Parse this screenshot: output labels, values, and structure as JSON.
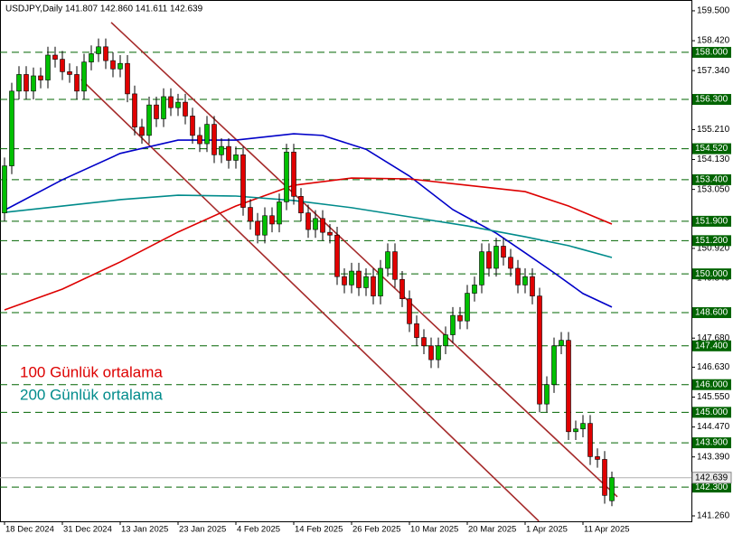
{
  "chart_data": {
    "type": "candlestick",
    "title": "USDJPY,Daily  141.807 142.860 141.611 142.639",
    "categories": [
      "18 Dec 2024",
      null,
      null,
      null,
      null,
      null,
      null,
      null,
      "31 Dec 2024",
      null,
      null,
      null,
      null,
      null,
      null,
      null,
      "13 Jan 2025",
      null,
      null,
      null,
      null,
      null,
      null,
      null,
      "23 Jan 2025",
      null,
      null,
      null,
      null,
      null,
      null,
      null,
      "4 Feb 2025",
      null,
      null,
      null,
      null,
      null,
      null,
      null,
      "14 Feb 2025",
      null,
      null,
      null,
      null,
      null,
      null,
      null,
      "26 Feb 2025",
      null,
      null,
      null,
      null,
      null,
      null,
      null,
      "10 Mar 2025",
      null,
      null,
      null,
      null,
      null,
      null,
      null,
      "20 Mar 2025",
      null,
      null,
      null,
      null,
      null,
      null,
      null,
      "1 Apr 2025",
      null,
      null,
      null,
      null,
      null,
      null,
      null,
      "11 Apr 2025",
      null,
      null,
      null,
      null
    ],
    "open": [
      152.2,
      153.9,
      156.6,
      157.2,
      156.6,
      157.15,
      157.0,
      157.9,
      157.75,
      157.3,
      157.2,
      156.6,
      157.65,
      157.95,
      158.2,
      157.7,
      157.4,
      157.6,
      156.5,
      155.3,
      155.0,
      156.1,
      155.6,
      156.4,
      156.0,
      156.2,
      155.7,
      155.0,
      154.7,
      155.4,
      154.3,
      154.6,
      154.1,
      154.3,
      152.4,
      151.9,
      151.4,
      152.1,
      151.8,
      152.6,
      154.4,
      152.8,
      152.2,
      151.6,
      152.0,
      151.5,
      151.4,
      149.9,
      149.6,
      150.1,
      149.5,
      149.9,
      149.2,
      150.2,
      150.8,
      149.8,
      149.1,
      148.2,
      147.7,
      147.4,
      146.9,
      147.4,
      147.8,
      148.5,
      148.3,
      149.3,
      149.6,
      150.8,
      150.2,
      151.0,
      150.6,
      150.2,
      149.6,
      149.9,
      149.2,
      145.3,
      146.0,
      147.4,
      147.6,
      144.3,
      144.4,
      144.6,
      143.4,
      143.3,
      141.807
    ],
    "high": [
      154.2,
      156.9,
      157.5,
      157.5,
      157.45,
      157.45,
      158.2,
      158.2,
      158.05,
      157.6,
      157.5,
      157.95,
      158.25,
      158.5,
      158.5,
      158.0,
      157.9,
      157.9,
      156.8,
      155.6,
      156.4,
      156.4,
      156.7,
      156.7,
      156.5,
      156.5,
      156.0,
      155.3,
      155.7,
      155.7,
      154.9,
      154.9,
      154.6,
      154.6,
      152.7,
      152.2,
      152.4,
      152.4,
      152.9,
      154.7,
      154.7,
      153.1,
      152.5,
      152.3,
      152.3,
      151.8,
      151.7,
      150.2,
      150.4,
      150.4,
      150.2,
      150.2,
      150.5,
      151.1,
      151.1,
      150.1,
      149.4,
      148.5,
      148.0,
      147.7,
      147.7,
      148.1,
      148.8,
      148.8,
      149.6,
      149.9,
      151.1,
      151.1,
      151.3,
      151.3,
      150.9,
      150.5,
      150.2,
      150.2,
      149.5,
      146.3,
      147.7,
      147.9,
      147.9,
      144.7,
      144.9,
      144.9,
      143.7,
      143.6,
      142.86
    ],
    "low": [
      151.9,
      153.6,
      156.3,
      156.3,
      156.3,
      156.7,
      156.7,
      157.45,
      157.0,
      156.9,
      156.3,
      156.3,
      157.35,
      157.65,
      157.4,
      157.1,
      157.1,
      156.2,
      155.0,
      154.7,
      154.7,
      155.3,
      155.3,
      155.7,
      155.7,
      155.4,
      154.7,
      154.4,
      154.4,
      154.0,
      154.0,
      153.8,
      153.8,
      152.1,
      151.6,
      151.1,
      151.1,
      151.5,
      151.5,
      152.3,
      152.5,
      151.9,
      151.3,
      151.3,
      151.2,
      151.1,
      149.6,
      149.3,
      149.3,
      149.2,
      149.2,
      148.9,
      148.9,
      149.9,
      149.5,
      148.8,
      147.9,
      147.4,
      147.1,
      146.6,
      146.6,
      147.1,
      147.5,
      148.0,
      148.0,
      149.0,
      149.3,
      149.9,
      149.9,
      150.3,
      149.9,
      149.3,
      149.3,
      148.9,
      145.0,
      145.0,
      145.7,
      147.1,
      144.0,
      144.0,
      144.1,
      143.1,
      143.0,
      141.7,
      141.611
    ],
    "close": [
      153.9,
      156.6,
      157.2,
      156.6,
      157.15,
      157.0,
      157.9,
      157.75,
      157.3,
      157.2,
      156.6,
      157.65,
      157.95,
      158.2,
      157.7,
      157.4,
      157.6,
      156.5,
      155.3,
      155.0,
      156.1,
      155.6,
      156.4,
      156.0,
      156.2,
      155.7,
      155.0,
      154.7,
      155.4,
      154.3,
      154.6,
      154.1,
      154.3,
      152.4,
      151.9,
      151.4,
      152.1,
      151.8,
      152.6,
      154.4,
      152.8,
      152.2,
      151.6,
      152.0,
      151.5,
      151.4,
      149.9,
      149.6,
      150.1,
      149.5,
      149.9,
      149.2,
      150.2,
      150.8,
      149.8,
      149.1,
      148.2,
      147.7,
      147.4,
      146.9,
      147.4,
      147.8,
      148.5,
      148.3,
      149.3,
      149.6,
      150.8,
      150.2,
      151.0,
      150.6,
      150.2,
      149.6,
      149.9,
      149.2,
      145.3,
      146.0,
      147.4,
      147.6,
      144.3,
      144.4,
      144.6,
      143.4,
      143.3,
      142.0,
      142.639
    ],
    "up_color": "#00c000",
    "down_color": "#e00000",
    "moving_averages": [
      {
        "color": "#0000c8",
        "x": [
          0,
          8,
          16,
          24,
          32,
          40,
          44,
          50,
          56,
          62,
          68,
          72,
          76,
          80,
          84
        ],
        "values": [
          152.3,
          153.4,
          154.35,
          154.83,
          154.83,
          155.06,
          155.0,
          154.5,
          153.53,
          152.32,
          151.47,
          150.76,
          150.04,
          149.29,
          148.8
        ]
      },
      {
        "color": "#dd0000",
        "x": [
          0,
          8,
          16,
          24,
          32,
          40,
          48,
          56,
          64,
          72,
          78,
          84
        ],
        "values": [
          148.7,
          149.45,
          150.43,
          151.51,
          152.45,
          153.2,
          153.46,
          153.43,
          153.2,
          152.97,
          152.45,
          151.8
        ]
      },
      {
        "color": "#008b8b",
        "x": [
          0,
          8,
          16,
          24,
          32,
          40,
          48,
          56,
          64,
          72,
          78,
          84
        ],
        "values": [
          152.22,
          152.45,
          152.68,
          152.84,
          152.81,
          152.65,
          152.39,
          152.06,
          151.73,
          151.34,
          151.02,
          150.59
        ]
      }
    ],
    "trendlines": [
      {
        "color": "#a52a2a",
        "x": [
          14.75,
          84.75
        ],
        "values": [
          159.08,
          141.95
        ]
      },
      {
        "color": "#a52a2a",
        "x": [
          10.6,
          73.9
        ],
        "values": [
          157.02,
          141.07
        ]
      }
    ],
    "annotations": [
      {
        "text": "100 Günlük ortalama",
        "color": "#dd0000"
      },
      {
        "text": "200 Günlük ortalama",
        "color": "#008b8b"
      }
    ],
    "levels": [
      {
        "value": 158,
        "label": "158.000"
      },
      {
        "value": 156.3,
        "label": "156.300"
      },
      {
        "value": 154.52,
        "label": "154.520"
      },
      {
        "value": 153.4,
        "label": "153.400"
      },
      {
        "value": 151.9,
        "label": "151.900"
      },
      {
        "value": 151.2,
        "label": "151.200"
      },
      {
        "value": 150,
        "label": "150.000"
      },
      {
        "value": 148.6,
        "label": "148.600"
      },
      {
        "value": 147.4,
        "label": "147.400"
      },
      {
        "value": 146,
        "label": "146.000"
      },
      {
        "value": 145,
        "label": "145.000"
      },
      {
        "value": 143.9,
        "label": "143.900"
      },
      {
        "value": 142.3,
        "label": "142.300"
      }
    ],
    "level_color": "#006400",
    "current_price": 142.639,
    "xlim": [
      -0.625,
      95
    ],
    "ylim": [
      141.064,
      159.89
    ],
    "yticks": [
      {
        "value": 159.5,
        "label": "159.500"
      },
      {
        "value": 158.42,
        "label": "158.420"
      },
      {
        "value": 157.34,
        "label": "157.340"
      },
      {
        "value": 155.21,
        "label": "155.210"
      },
      {
        "value": 154.13,
        "label": "154.130"
      },
      {
        "value": 153.05,
        "label": "153.050"
      },
      {
        "value": 150.92,
        "label": "150.920"
      },
      {
        "value": 149.84,
        "label": "149.840"
      },
      {
        "value": 147.68,
        "label": "147.680"
      },
      {
        "value": 146.63,
        "label": "146.630"
      },
      {
        "value": 145.55,
        "label": "145.550"
      },
      {
        "value": 144.47,
        "label": "144.470"
      },
      {
        "value": 143.39,
        "label": "143.390"
      },
      {
        "value": 141.26,
        "label": "141.260"
      }
    ]
  }
}
